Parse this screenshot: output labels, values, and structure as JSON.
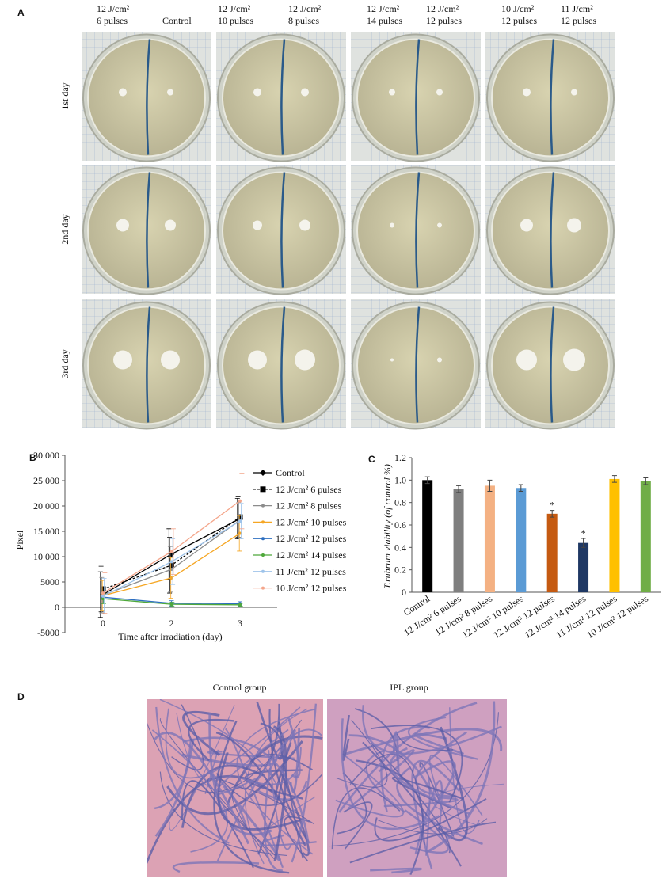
{
  "panel_a": {
    "label": "A",
    "columns": [
      [
        "12 J/cm²",
        "6 pulses"
      ],
      [
        "Control"
      ],
      [
        "12 J/cm²",
        "10 pulses"
      ],
      [
        "12 J/cm²",
        "8 pulses"
      ],
      [
        "12 J/cm²",
        "14 pulses"
      ],
      [
        "12 J/cm²",
        "12 pulses"
      ],
      [
        "10 J/cm²",
        "12 pulses"
      ],
      [
        "11 J/cm²",
        "12 pulses"
      ]
    ],
    "rows": [
      "1st day",
      "2nd day",
      "3rd day"
    ]
  },
  "chart_data": [
    {
      "type": "line",
      "label": "B",
      "x_label": "Time after irradiation (day)",
      "y_label": "Pixel",
      "categories": [
        "0",
        "2",
        "3"
      ],
      "ylim": [
        -5000,
        30000
      ],
      "yticks": [
        -5000,
        0,
        5000,
        {
          "value": 10000,
          "label": "10 000"
        },
        {
          "value": 15000,
          "label": "15 000"
        },
        {
          "value": 20000,
          "label": "20 000"
        },
        {
          "value": 25000,
          "label": "25 000"
        },
        {
          "value": 30000,
          "label": "30 000"
        }
      ],
      "series": [
        {
          "name": "Control",
          "color": "#000000",
          "marker": "diamond",
          "style": "solid",
          "values": [
            2500,
            10500,
            17500
          ],
          "errors": [
            4500,
            5000,
            4000
          ]
        },
        {
          "name": "12 J/cm² 6 pulses",
          "color": "#000000",
          "marker": "square",
          "style": "dashed",
          "values": [
            3600,
            8300,
            17800
          ],
          "errors": [
            4500,
            5500,
            4000
          ]
        },
        {
          "name": "12 J/cm² 8 pulses",
          "color": "#8c8c8c",
          "marker": "dot",
          "style": "solid",
          "values": [
            2400,
            7500,
            17200
          ],
          "errors": [
            3500,
            4500,
            3500
          ]
        },
        {
          "name": "12 J/cm² 10 pulses",
          "color": "#f5a623",
          "marker": "dot",
          "style": "solid",
          "values": [
            2300,
            5800,
            14600
          ],
          "errors": [
            3000,
            4000,
            3500
          ]
        },
        {
          "name": "12 J/cm² 12 pulses",
          "color": "#2e6fc0",
          "marker": "dot",
          "style": "solid",
          "values": [
            2000,
            800,
            700
          ],
          "errors": [
            1200,
            500,
            400
          ]
        },
        {
          "name": "12 J/cm² 14 pulses",
          "color": "#4ea83a",
          "marker": "dot",
          "style": "solid",
          "values": [
            1700,
            600,
            500
          ],
          "errors": [
            1000,
            400,
            300
          ]
        },
        {
          "name": "11 J/cm² 12 pulses",
          "color": "#9ec3ea",
          "marker": "dot",
          "style": "solid",
          "values": [
            2200,
            9000,
            17000
          ],
          "errors": [
            3500,
            4500,
            3500
          ]
        },
        {
          "name": "10 J/cm² 12 pulses",
          "color": "#f4a58a",
          "marker": "dot",
          "style": "solid",
          "values": [
            2800,
            11000,
            21000
          ],
          "errors": [
            4000,
            4500,
            5500
          ]
        }
      ]
    },
    {
      "type": "bar",
      "label": "C",
      "y_label": "T.rubrum viability (of control %)",
      "categories": [
        "Control",
        "12 J/cm² 6 pulses",
        "12 J/cm² 8 pulses",
        "12 J/cm² 10 pulses",
        "12 J/cm² 12 pulses",
        "12 J/cm² 14 pulses",
        "11 J/cm² 12 pulses",
        "10 J/cm² 12 pulses"
      ],
      "values": [
        1.0,
        0.92,
        0.95,
        0.93,
        0.7,
        0.44,
        1.01,
        0.99
      ],
      "errors": [
        0.03,
        0.03,
        0.05,
        0.03,
        0.03,
        0.04,
        0.03,
        0.03
      ],
      "colors": [
        "#000000",
        "#7f7f7f",
        "#f4b183",
        "#5b9bd5",
        "#c55a11",
        "#1f3864",
        "#ffc000",
        "#70ad47"
      ],
      "markers": [
        null,
        null,
        null,
        null,
        "*",
        "*",
        null,
        null
      ],
      "ylim": [
        0,
        1.2
      ],
      "yticks": [
        0,
        0.2,
        0.4,
        0.6,
        0.8,
        {
          "value": 1,
          "label": "1.0"
        },
        1.2
      ]
    }
  ],
  "panel_d": {
    "label": "D",
    "images": [
      "Control group",
      "IPL group"
    ]
  }
}
